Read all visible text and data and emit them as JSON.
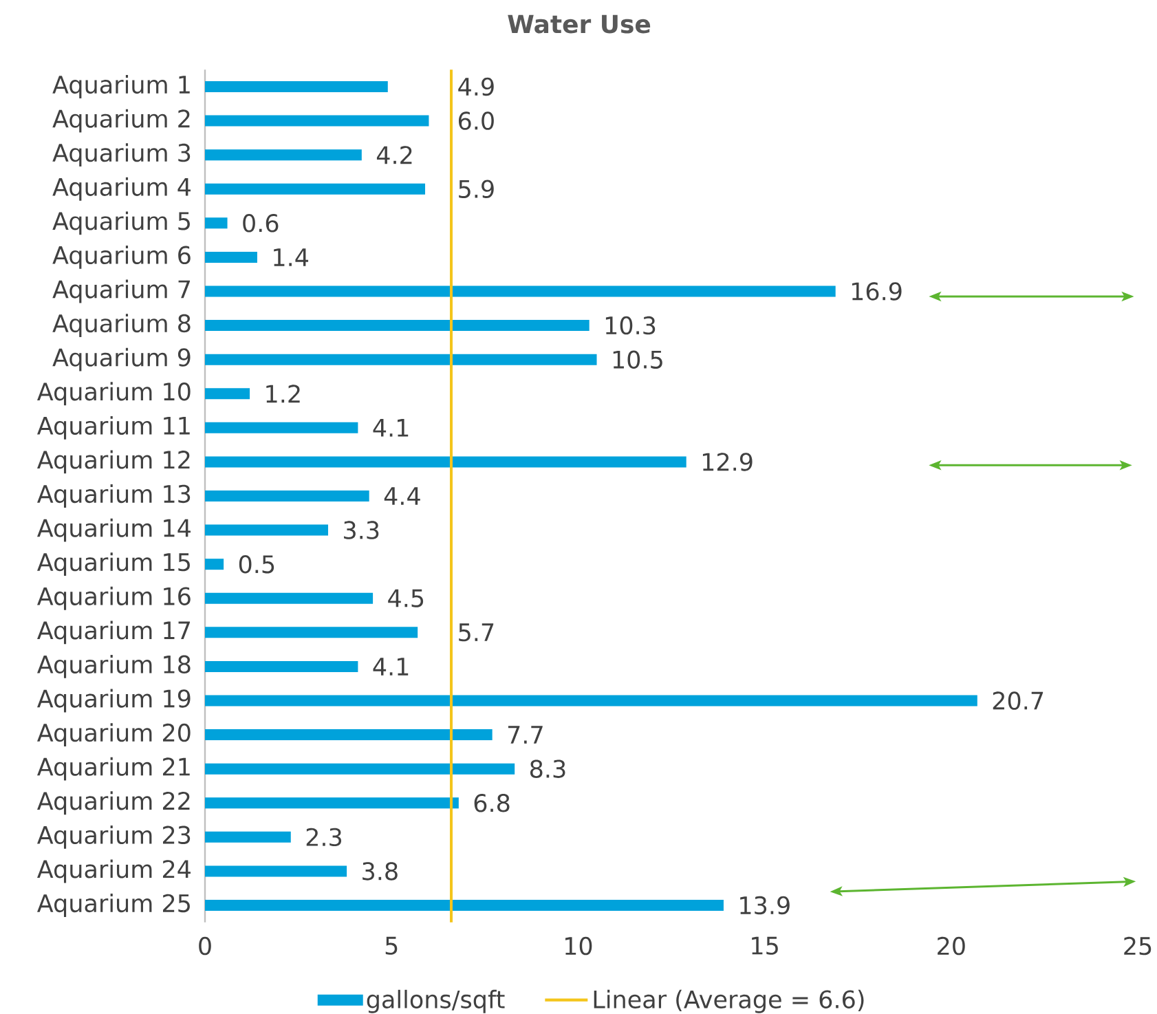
{
  "chart_data": {
    "type": "bar",
    "orientation": "horizontal",
    "title": "Water Use",
    "categories": [
      "Aquarium 1",
      "Aquarium 2",
      "Aquarium 3",
      "Aquarium 4",
      "Aquarium 5",
      "Aquarium 6",
      "Aquarium 7",
      "Aquarium 8",
      "Aquarium 9",
      "Aquarium 10",
      "Aquarium 11",
      "Aquarium 12",
      "Aquarium 13",
      "Aquarium 14",
      "Aquarium 15",
      "Aquarium 16",
      "Aquarium 17",
      "Aquarium 18",
      "Aquarium 19",
      "Aquarium 20",
      "Aquarium 21",
      "Aquarium 22",
      "Aquarium 23",
      "Aquarium 24",
      "Aquarium 25"
    ],
    "series": [
      {
        "name": "gallons/sqft",
        "color": "#00a2db",
        "values": [
          4.9,
          6.0,
          4.2,
          5.9,
          0.6,
          1.4,
          16.9,
          10.3,
          10.5,
          1.2,
          4.1,
          12.9,
          4.4,
          3.3,
          0.5,
          4.5,
          5.7,
          4.1,
          20.7,
          7.7,
          8.3,
          6.8,
          2.3,
          3.8,
          13.9
        ],
        "value_labels": [
          "4.9",
          "6.0",
          "4.2",
          "5.9",
          "0.6",
          "1.4",
          "16.9",
          "10.3",
          "10.5",
          "1.2",
          "4.1",
          "12.9",
          "4.4",
          "3.3",
          "0.5",
          "4.5",
          "5.7",
          "4.1",
          "20.7",
          "7.7",
          "8.3",
          "6.8",
          "2.3",
          "3.8",
          "13.9"
        ]
      }
    ],
    "ref_lines": [
      {
        "axis": "x",
        "value": 6.6,
        "label": "Linear (Average = 6.6)",
        "color": "#f4c51b"
      }
    ],
    "xlim": [
      0,
      25
    ],
    "xticks": [
      0,
      5,
      10,
      15,
      20,
      25
    ],
    "legend": "bottom"
  }
}
